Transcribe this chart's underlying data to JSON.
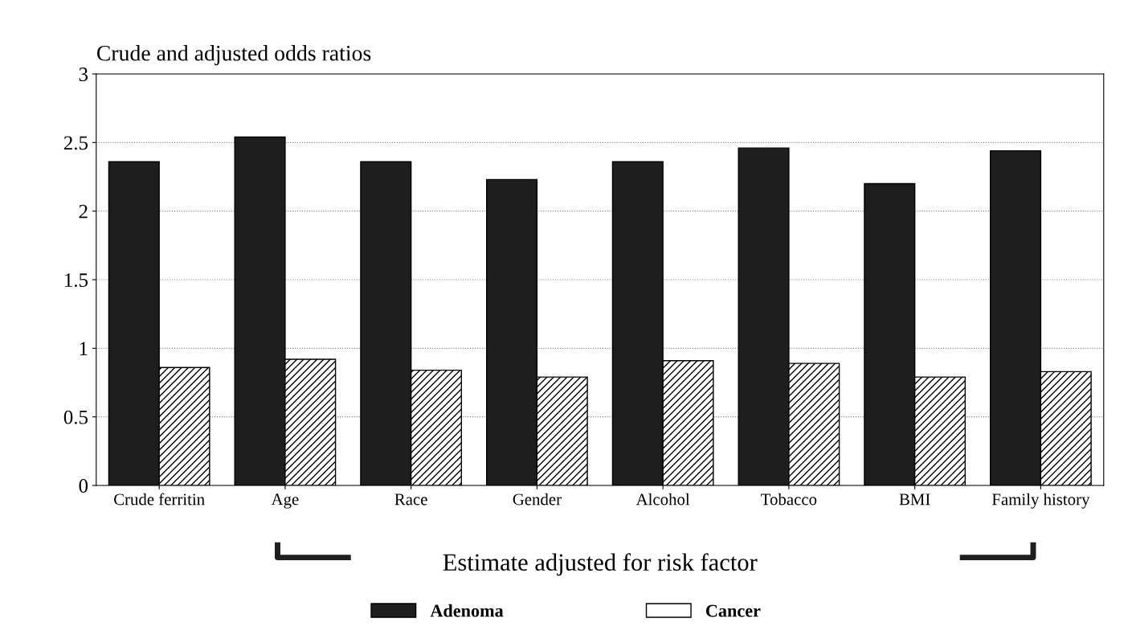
{
  "chart_data": {
    "type": "bar",
    "title": "Crude and adjusted odds ratios",
    "xlabel": "Estimate adjusted for risk factor",
    "categories": [
      "Crude ferritin",
      "Age",
      "Race",
      "Gender",
      "Alcohol",
      "Tobacco",
      "BMI",
      "Family history"
    ],
    "series": [
      {
        "name": "Adenoma",
        "color": "#1e1e1e",
        "values": [
          2.36,
          2.54,
          2.36,
          2.23,
          2.36,
          2.46,
          2.2,
          2.44
        ]
      },
      {
        "name": "Cancer",
        "color": "#ffffff",
        "values": [
          0.86,
          0.92,
          0.84,
          0.79,
          0.91,
          0.89,
          0.79,
          0.83
        ]
      }
    ],
    "ylim": [
      0,
      3
    ],
    "yticks": [
      0,
      0.5,
      1,
      1.5,
      2,
      2.5,
      3
    ],
    "grid": "y",
    "legend": "bottom"
  }
}
